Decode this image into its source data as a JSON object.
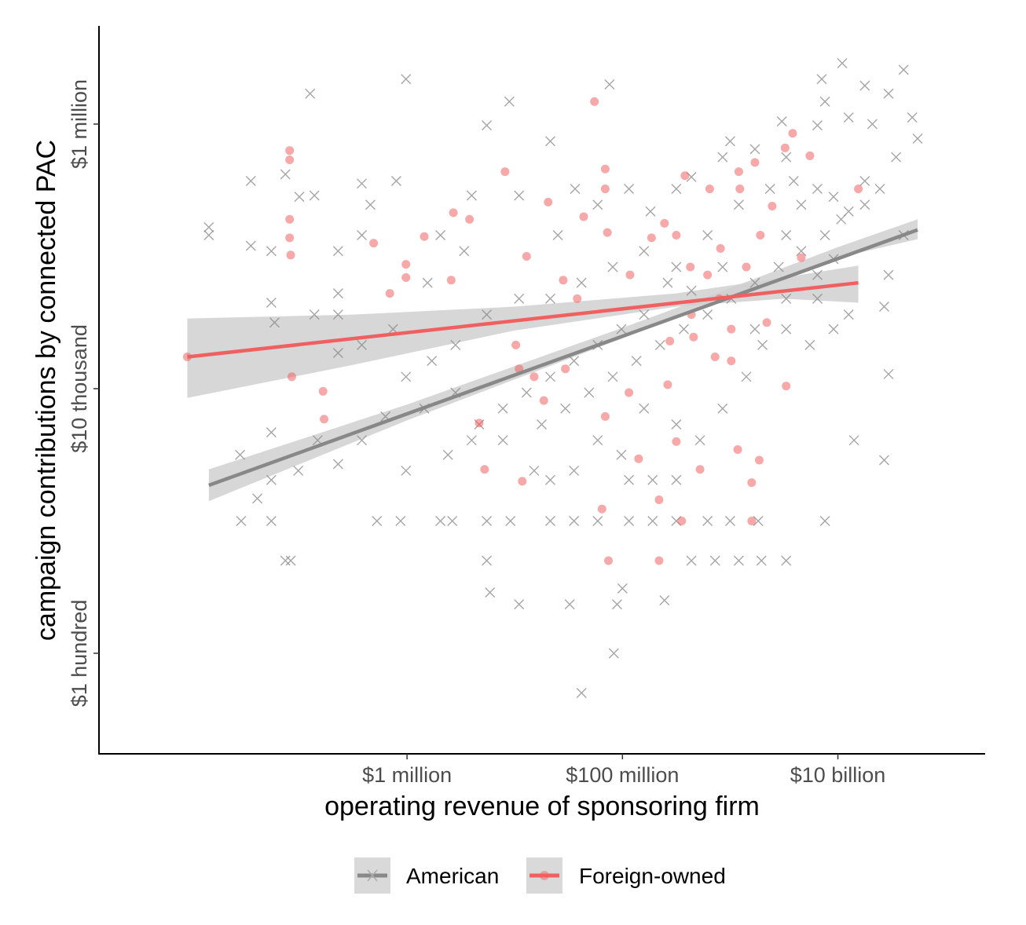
{
  "chart_data": {
    "type": "scatter",
    "x_scale": "log10",
    "y_scale": "log10",
    "xlabel": "operating revenue of sponsoring firm",
    "ylabel": "campaign contributions by connected PAC",
    "xlim_log10": [
      3.14,
      11.36
    ],
    "ylim_log10": [
      1.24,
      6.73
    ],
    "x_ticks": [
      {
        "value_log10": 6,
        "label": "$1 million"
      },
      {
        "value_log10": 8,
        "label": "$100 million"
      },
      {
        "value_log10": 10,
        "label": "$10 billion"
      }
    ],
    "y_ticks": [
      {
        "value_log10": 2,
        "label": "$1 hundred"
      },
      {
        "value_log10": 4,
        "label": "$10 thousand"
      },
      {
        "value_log10": 6,
        "label": "$1 million"
      }
    ],
    "grid": false,
    "legend": {
      "placement": "bottom",
      "entries": [
        "American",
        "Foreign-owned"
      ]
    },
    "colors": {
      "American": "#888888",
      "Foreign-owned": "#f06060",
      "band": "#d0d0d0"
    },
    "series": [
      {
        "name": "American",
        "marker": "x",
        "fit": {
          "x": [
            4.16,
            10.74
          ],
          "y": [
            3.27,
            5.2
          ]
        },
        "band": [
          [
            4.16,
            3.15,
            3.39
          ],
          [
            6.0,
            3.76,
            3.88
          ],
          [
            8.0,
            4.38,
            4.46
          ],
          [
            9.0,
            4.7,
            4.76
          ],
          [
            10.0,
            4.99,
            5.07
          ],
          [
            10.74,
            5.13,
            5.28
          ]
        ],
        "points": [
          [
            4.16,
            5.22
          ],
          [
            4.16,
            5.16
          ],
          [
            4.55,
            5.57
          ],
          [
            4.55,
            5.08
          ],
          [
            4.74,
            5.04
          ],
          [
            4.74,
            4.65
          ],
          [
            4.87,
            5.62
          ],
          [
            5.0,
            5.45
          ],
          [
            5.1,
            6.23
          ],
          [
            5.14,
            5.46
          ],
          [
            5.36,
            5.04
          ],
          [
            5.36,
            4.72
          ],
          [
            5.36,
            4.56
          ],
          [
            5.58,
            5.55
          ],
          [
            5.58,
            5.16
          ],
          [
            5.66,
            5.39
          ],
          [
            5.9,
            5.57
          ],
          [
            5.99,
            6.34
          ],
          [
            5.99,
            4.09
          ],
          [
            6.19,
            4.8
          ],
          [
            6.31,
            5.16
          ],
          [
            6.53,
            5.04
          ],
          [
            6.6,
            5.46
          ],
          [
            6.74,
            5.99
          ],
          [
            6.95,
            6.17
          ],
          [
            7.04,
            5.46
          ],
          [
            7.33,
            5.87
          ],
          [
            7.4,
            5.16
          ],
          [
            7.56,
            5.51
          ],
          [
            7.77,
            5.39
          ],
          [
            7.88,
            6.3
          ],
          [
            8.06,
            5.51
          ],
          [
            8.26,
            5.34
          ],
          [
            8.5,
            5.51
          ],
          [
            8.64,
            5.6
          ],
          [
            8.93,
            5.75
          ],
          [
            9.0,
            5.87
          ],
          [
            9.23,
            5.81
          ],
          [
            9.48,
            6.02
          ],
          [
            9.52,
            5.75
          ],
          [
            9.81,
            5.99
          ],
          [
            9.85,
            6.34
          ],
          [
            9.88,
            6.17
          ],
          [
            10.04,
            6.46
          ],
          [
            10.1,
            6.05
          ],
          [
            10.25,
            6.29
          ],
          [
            10.32,
            6.0
          ],
          [
            10.47,
            6.23
          ],
          [
            10.61,
            6.41
          ],
          [
            10.69,
            6.05
          ],
          [
            10.74,
            5.89
          ],
          [
            10.54,
            5.75
          ],
          [
            10.39,
            5.51
          ],
          [
            10.25,
            5.39
          ],
          [
            10.03,
            5.28
          ],
          [
            9.96,
            4.98
          ],
          [
            9.81,
            4.86
          ],
          [
            9.66,
            5.39
          ],
          [
            9.52,
            5.16
          ],
          [
            10.1,
            4.56
          ],
          [
            10.43,
            4.62
          ],
          [
            10.47,
            4.11
          ],
          [
            10.15,
            3.61
          ],
          [
            10.43,
            3.46
          ],
          [
            9.88,
            3.0
          ],
          [
            9.52,
            2.7
          ],
          [
            9.29,
            2.7
          ],
          [
            9.08,
            2.7
          ],
          [
            8.86,
            2.7
          ],
          [
            8.64,
            2.7
          ],
          [
            8.39,
            2.4
          ],
          [
            8.0,
            2.49
          ],
          [
            7.95,
            2.37
          ],
          [
            7.92,
            2.0
          ],
          [
            7.62,
            1.7
          ],
          [
            7.51,
            2.37
          ],
          [
            7.04,
            2.37
          ],
          [
            6.77,
            2.46
          ],
          [
            6.74,
            2.7
          ],
          [
            6.42,
            3.0
          ],
          [
            6.31,
            3.0
          ],
          [
            5.94,
            3.0
          ],
          [
            5.72,
            3.0
          ],
          [
            4.74,
            3.0
          ],
          [
            4.46,
            3.0
          ],
          [
            4.87,
            2.7
          ],
          [
            4.92,
            2.7
          ],
          [
            4.74,
            3.67
          ],
          [
            4.45,
            3.5
          ],
          [
            4.61,
            3.17
          ],
          [
            4.74,
            3.31
          ],
          [
            4.99,
            3.38
          ],
          [
            5.17,
            3.61
          ],
          [
            5.36,
            3.43
          ],
          [
            5.58,
            3.61
          ],
          [
            5.8,
            3.79
          ],
          [
            5.99,
            3.38
          ],
          [
            6.16,
            3.85
          ],
          [
            6.38,
            3.5
          ],
          [
            6.6,
            3.61
          ],
          [
            6.74,
            3.0
          ],
          [
            6.96,
            3.0
          ],
          [
            7.33,
            3.0
          ],
          [
            7.55,
            3.0
          ],
          [
            7.77,
            3.0
          ],
          [
            8.06,
            3.0
          ],
          [
            8.28,
            3.0
          ],
          [
            8.5,
            3.0
          ],
          [
            8.79,
            3.0
          ],
          [
            9.0,
            3.0
          ],
          [
            9.26,
            3.0
          ],
          [
            8.06,
            3.31
          ],
          [
            8.28,
            3.31
          ],
          [
            8.5,
            3.31
          ],
          [
            7.33,
            3.31
          ],
          [
            7.18,
            3.38
          ],
          [
            6.89,
            3.61
          ],
          [
            7.25,
            3.73
          ],
          [
            7.47,
            3.85
          ],
          [
            7.69,
            3.97
          ],
          [
            7.91,
            4.09
          ],
          [
            8.13,
            4.21
          ],
          [
            8.35,
            4.33
          ],
          [
            8.57,
            4.45
          ],
          [
            8.79,
            4.56
          ],
          [
            9.01,
            4.68
          ],
          [
            9.23,
            4.8
          ],
          [
            9.45,
            4.92
          ],
          [
            9.66,
            5.04
          ],
          [
            9.88,
            5.16
          ],
          [
            10.1,
            5.34
          ],
          [
            9.52,
            4.45
          ],
          [
            9.74,
            4.33
          ],
          [
            9.96,
            4.45
          ],
          [
            9.3,
            4.33
          ],
          [
            9.15,
            4.09
          ],
          [
            8.93,
            3.85
          ],
          [
            8.72,
            3.61
          ],
          [
            8.5,
            3.73
          ],
          [
            8.2,
            3.85
          ],
          [
            7.99,
            3.5
          ],
          [
            7.77,
            3.61
          ],
          [
            7.55,
            3.38
          ],
          [
            8.79,
            5.16
          ],
          [
            9.08,
            5.39
          ],
          [
            9.37,
            5.51
          ],
          [
            9.59,
            5.57
          ],
          [
            9.81,
            5.51
          ],
          [
            8.93,
            4.92
          ],
          [
            8.64,
            4.74
          ],
          [
            8.42,
            4.8
          ],
          [
            8.2,
            4.56
          ],
          [
            7.99,
            4.45
          ],
          [
            7.77,
            4.33
          ],
          [
            7.55,
            4.21
          ],
          [
            7.33,
            4.09
          ],
          [
            7.11,
            3.97
          ],
          [
            6.89,
            3.85
          ],
          [
            6.67,
            3.73
          ],
          [
            6.45,
            3.97
          ],
          [
            6.23,
            4.21
          ],
          [
            5.87,
            4.45
          ],
          [
            5.58,
            4.33
          ],
          [
            5.36,
            4.27
          ],
          [
            5.14,
            4.56
          ],
          [
            4.77,
            4.5
          ],
          [
            6.45,
            4.33
          ],
          [
            6.74,
            4.56
          ],
          [
            7.04,
            4.68
          ],
          [
            7.33,
            4.68
          ],
          [
            7.62,
            4.8
          ],
          [
            7.91,
            4.92
          ],
          [
            8.2,
            5.04
          ],
          [
            8.5,
            4.92
          ],
          [
            9.23,
            4.45
          ],
          [
            9.52,
            4.68
          ],
          [
            9.81,
            4.68
          ],
          [
            9.96,
            5.45
          ],
          [
            10.25,
            5.57
          ],
          [
            10.61,
            5.16
          ],
          [
            10.47,
            4.86
          ]
        ]
      },
      {
        "name": "Foreign-owned",
        "marker": "circle",
        "fit": {
          "x": [
            3.96,
            10.19
          ],
          "y": [
            4.24,
            4.8
          ]
        },
        "band": [
          [
            3.96,
            3.93,
            4.53
          ],
          [
            5.5,
            4.18,
            4.56
          ],
          [
            7.0,
            4.44,
            4.62
          ],
          [
            8.5,
            4.62,
            4.72
          ],
          [
            9.5,
            4.68,
            4.84
          ],
          [
            10.19,
            4.65,
            4.93
          ]
        ],
        "points": [
          [
            3.96,
            4.24
          ],
          [
            4.91,
            5.8
          ],
          [
            4.91,
            5.73
          ],
          [
            4.91,
            5.28
          ],
          [
            4.91,
            5.14
          ],
          [
            4.92,
            5.01
          ],
          [
            4.93,
            4.09
          ],
          [
            5.22,
            3.98
          ],
          [
            5.23,
            3.77
          ],
          [
            5.69,
            5.1
          ],
          [
            5.84,
            4.72
          ],
          [
            5.99,
            4.94
          ],
          [
            5.99,
            4.84
          ],
          [
            6.16,
            5.15
          ],
          [
            6.41,
            4.82
          ],
          [
            6.43,
            5.33
          ],
          [
            6.58,
            5.28
          ],
          [
            6.67,
            3.74
          ],
          [
            6.72,
            3.39
          ],
          [
            6.91,
            5.64
          ],
          [
            7.01,
            4.33
          ],
          [
            7.07,
            3.3
          ],
          [
            7.11,
            5.0
          ],
          [
            7.31,
            5.41
          ],
          [
            7.45,
            4.82
          ],
          [
            7.64,
            5.3
          ],
          [
            7.74,
            6.17
          ],
          [
            7.84,
            5.66
          ],
          [
            7.84,
            5.51
          ],
          [
            7.86,
            5.18
          ],
          [
            8.07,
            4.86
          ],
          [
            8.27,
            5.14
          ],
          [
            8.39,
            5.25
          ],
          [
            8.44,
            4.36
          ],
          [
            8.5,
            3.6
          ],
          [
            8.58,
            5.61
          ],
          [
            8.63,
            4.92
          ],
          [
            8.72,
            3.39
          ],
          [
            8.81,
            5.51
          ],
          [
            8.91,
            5.06
          ],
          [
            9.08,
            5.64
          ],
          [
            9.09,
            5.51
          ],
          [
            9.23,
            5.71
          ],
          [
            9.28,
            5.16
          ],
          [
            9.39,
            5.38
          ],
          [
            9.51,
            5.82
          ],
          [
            9.58,
            5.93
          ],
          [
            9.74,
            5.76
          ],
          [
            9.66,
            4.99
          ],
          [
            10.19,
            5.51
          ],
          [
            9.52,
            4.02
          ],
          [
            9.27,
            3.46
          ],
          [
            9.07,
            3.54
          ],
          [
            9.2,
            3.29
          ],
          [
            9.2,
            3.0
          ],
          [
            8.55,
            3.0
          ],
          [
            8.34,
            2.7
          ],
          [
            7.87,
            2.7
          ],
          [
            7.81,
            3.09
          ],
          [
            7.58,
            4.68
          ],
          [
            7.47,
            4.15
          ],
          [
            7.18,
            4.09
          ],
          [
            7.27,
            3.91
          ],
          [
            7.04,
            4.15
          ],
          [
            8.15,
            3.47
          ],
          [
            8.34,
            3.16
          ],
          [
            8.42,
            4.03
          ],
          [
            8.86,
            4.24
          ],
          [
            9.01,
            4.21
          ],
          [
            8.66,
            4.39
          ],
          [
            8.06,
            3.97
          ],
          [
            7.84,
            3.79
          ],
          [
            9.01,
            4.45
          ],
          [
            9.34,
            4.5
          ],
          [
            8.9,
            4.68
          ],
          [
            8.64,
            4.56
          ],
          [
            8.5,
            5.16
          ],
          [
            9.15,
            4.92
          ],
          [
            8.79,
            4.86
          ]
        ]
      }
    ]
  }
}
